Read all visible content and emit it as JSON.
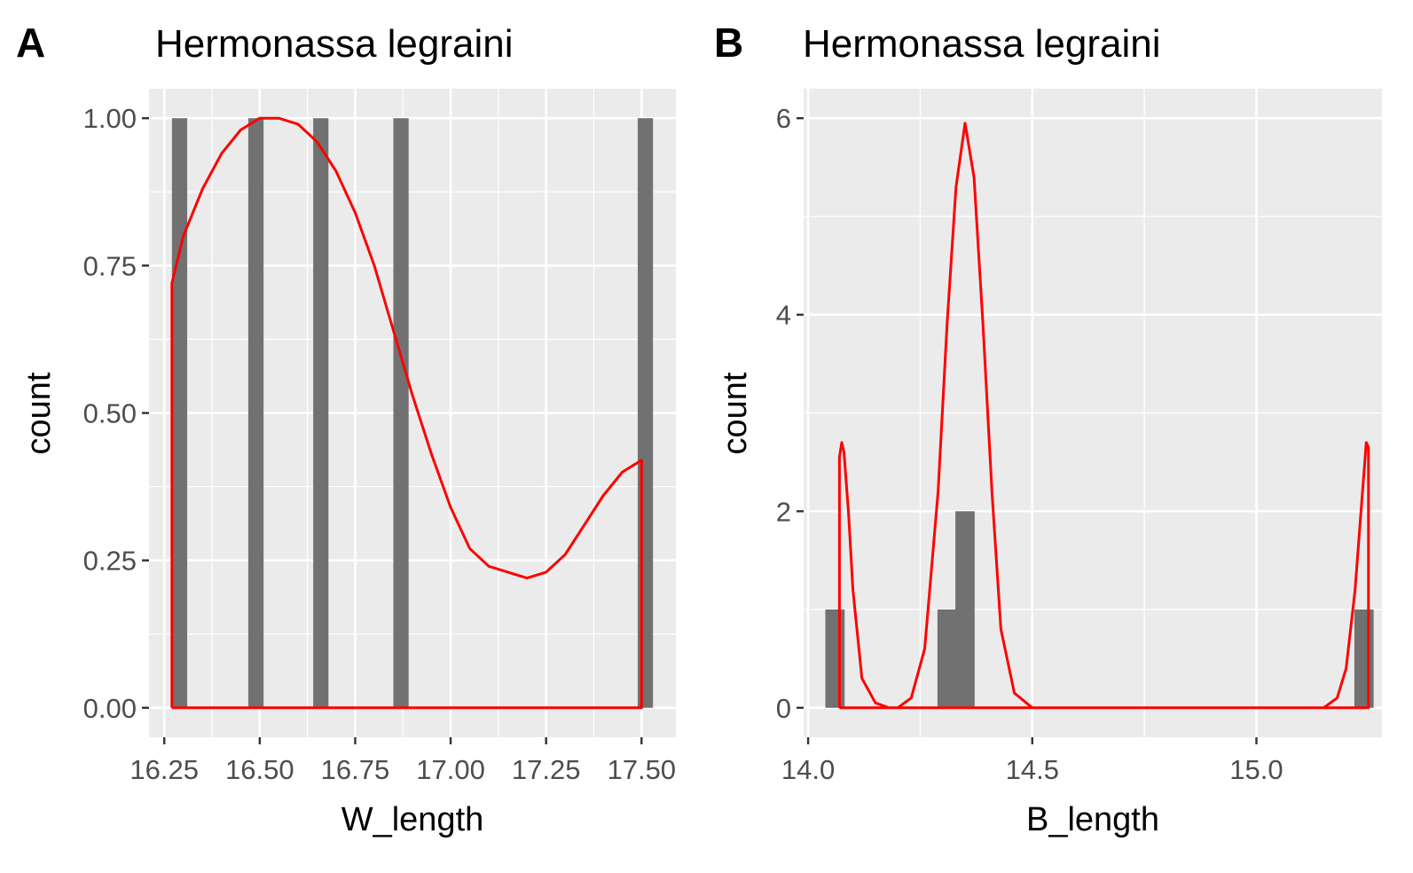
{
  "chart_data": [
    {
      "panel_label": "A",
      "type": "bar",
      "overlay": "density-line",
      "title": "Hermonassa legraini",
      "xlabel": "W_length",
      "ylabel": "count",
      "xlim": [
        16.21,
        17.59
      ],
      "ylim": [
        -0.05,
        1.05
      ],
      "xticks": [
        16.25,
        16.5,
        16.75,
        17.0,
        17.25,
        17.5
      ],
      "xtick_labels": [
        "16.25",
        "16.50",
        "16.75",
        "17.00",
        "17.25",
        "17.50"
      ],
      "yticks": [
        0,
        0.25,
        0.5,
        0.75,
        1.0
      ],
      "ytick_labels": [
        "0.00",
        "0.25",
        "0.50",
        "0.75",
        "1.00"
      ],
      "bar_color": "#717171",
      "line_color": "#ff0000",
      "panel_background": "#ebebeb",
      "grid": true,
      "bar_width": 0.04,
      "bars": [
        {
          "x": 16.29,
          "count": 1
        },
        {
          "x": 16.49,
          "count": 1
        },
        {
          "x": 16.66,
          "count": 1
        },
        {
          "x": 16.87,
          "count": 1
        },
        {
          "x": 17.51,
          "count": 1
        }
      ],
      "density": {
        "x": [
          16.27,
          16.27,
          16.3,
          16.35,
          16.4,
          16.45,
          16.5,
          16.55,
          16.6,
          16.65,
          16.7,
          16.75,
          16.8,
          16.85,
          16.9,
          16.95,
          17.0,
          17.05,
          17.1,
          17.15,
          17.2,
          17.25,
          17.3,
          17.35,
          17.4,
          17.45,
          17.5,
          17.5,
          16.27
        ],
        "y": [
          0,
          0.72,
          0.8,
          0.88,
          0.94,
          0.98,
          1.0,
          1.0,
          0.99,
          0.96,
          0.91,
          0.84,
          0.75,
          0.64,
          0.53,
          0.43,
          0.34,
          0.27,
          0.24,
          0.23,
          0.22,
          0.23,
          0.26,
          0.31,
          0.36,
          0.4,
          0.42,
          0,
          0
        ]
      }
    },
    {
      "panel_label": "B",
      "type": "bar",
      "overlay": "density-line",
      "title": "Hermonassa legraini",
      "xlabel": "B_length",
      "ylabel": "count",
      "xlim": [
        13.99,
        15.28
      ],
      "ylim": [
        -0.3,
        6.3
      ],
      "xticks": [
        14.0,
        14.5,
        15.0
      ],
      "xtick_labels": [
        "14.0",
        "14.5",
        "15.0"
      ],
      "yticks": [
        0,
        2,
        4,
        6
      ],
      "ytick_labels": [
        "0",
        "2",
        "4",
        "6"
      ],
      "bar_color": "#717171",
      "line_color": "#ff0000",
      "panel_background": "#ebebeb",
      "grid": true,
      "bar_width": 0.043,
      "bars": [
        {
          "x": 14.06,
          "count": 1
        },
        {
          "x": 14.31,
          "count": 1
        },
        {
          "x": 14.35,
          "count": 2
        },
        {
          "x": 15.24,
          "count": 1
        }
      ],
      "density": {
        "x": [
          14.07,
          14.07,
          14.075,
          14.08,
          14.09,
          14.1,
          14.12,
          14.15,
          14.18,
          14.2,
          14.23,
          14.26,
          14.29,
          14.31,
          14.33,
          14.35,
          14.37,
          14.39,
          14.41,
          14.43,
          14.46,
          14.5,
          14.6,
          14.8,
          15.0,
          15.15,
          15.18,
          15.2,
          15.22,
          15.23,
          15.24,
          15.245,
          15.25,
          15.25,
          14.07
        ],
        "y": [
          0,
          2.55,
          2.7,
          2.6,
          2.0,
          1.2,
          0.3,
          0.05,
          0.0,
          0.0,
          0.1,
          0.6,
          2.2,
          3.9,
          5.3,
          5.95,
          5.4,
          3.9,
          2.2,
          0.8,
          0.15,
          0.0,
          0.0,
          0.0,
          0.0,
          0.0,
          0.1,
          0.4,
          1.2,
          1.8,
          2.4,
          2.7,
          2.65,
          0,
          0
        ]
      }
    }
  ]
}
